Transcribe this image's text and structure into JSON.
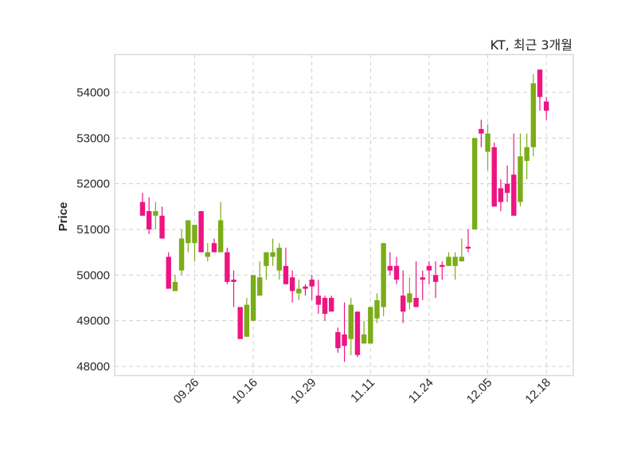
{
  "chart_data": {
    "type": "candlestick",
    "title": "KT, 최근 3개월",
    "xlabel": "",
    "ylabel": "Price",
    "ylim": [
      47800,
      54800
    ],
    "yticks": [
      48000,
      49000,
      50000,
      51000,
      52000,
      53000,
      54000
    ],
    "xtick_labels": [
      {
        "index": 8,
        "label": "09.26"
      },
      {
        "index": 17,
        "label": "10.16"
      },
      {
        "index": 26,
        "label": "10.29"
      },
      {
        "index": 35,
        "label": "11.11"
      },
      {
        "index": 44,
        "label": "11.24"
      },
      {
        "index": 53,
        "label": "12.05"
      },
      {
        "index": 62,
        "label": "12.18"
      }
    ],
    "grid": true,
    "colors": {
      "up": "#7aad17",
      "down": "#ec1581"
    },
    "ohlc": [
      [
        51600,
        51800,
        51300,
        51300
      ],
      [
        51400,
        51700,
        50900,
        51000
      ],
      [
        51300,
        51600,
        51000,
        51400
      ],
      [
        51300,
        51500,
        50800,
        50800
      ],
      [
        50400,
        50500,
        49700,
        49700
      ],
      [
        49650,
        50000,
        49650,
        49850
      ],
      [
        50100,
        51000,
        50000,
        50800
      ],
      [
        50700,
        51200,
        50500,
        51200
      ],
      [
        50700,
        51100,
        50300,
        51100
      ],
      [
        51400,
        51400,
        50500,
        50500
      ],
      [
        50400,
        50700,
        50300,
        50500
      ],
      [
        50700,
        50800,
        50500,
        50500
      ],
      [
        50500,
        51600,
        50500,
        51200
      ],
      [
        50500,
        50600,
        49800,
        49850
      ],
      [
        49900,
        50100,
        49300,
        49850
      ],
      [
        49300,
        49300,
        48600,
        48600
      ],
      [
        48650,
        49500,
        48650,
        49350
      ],
      [
        49000,
        50000,
        49000,
        50000
      ],
      [
        49550,
        50300,
        49550,
        49950
      ],
      [
        50200,
        50500,
        49900,
        50500
      ],
      [
        50400,
        50800,
        50200,
        50500
      ],
      [
        50100,
        50700,
        49900,
        50600
      ],
      [
        50200,
        50600,
        49800,
        49800
      ],
      [
        49950,
        50100,
        49400,
        49650
      ],
      [
        49600,
        49900,
        49450,
        49700
      ],
      [
        49750,
        49800,
        49550,
        49700
      ],
      [
        49900,
        50000,
        49450,
        49750
      ],
      [
        49550,
        49900,
        49150,
        49350
      ],
      [
        49500,
        49550,
        49000,
        49150
      ],
      [
        49500,
        49550,
        49200,
        49200
      ],
      [
        48750,
        48850,
        48300,
        48400
      ],
      [
        48700,
        49400,
        48100,
        48450
      ],
      [
        48600,
        49500,
        48250,
        49350
      ],
      [
        49200,
        49200,
        48200,
        48250
      ],
      [
        48500,
        49000,
        48500,
        48700
      ],
      [
        48500,
        49300,
        48500,
        49300
      ],
      [
        49050,
        49600,
        48950,
        49450
      ],
      [
        49300,
        50700,
        49100,
        50700
      ],
      [
        50200,
        50500,
        50000,
        50100
      ],
      [
        50200,
        50400,
        49800,
        49900
      ],
      [
        49550,
        50100,
        48950,
        49200
      ],
      [
        49400,
        49950,
        49250,
        49600
      ],
      [
        49500,
        50300,
        49300,
        49300
      ],
      [
        49950,
        50100,
        49450,
        49900
      ],
      [
        50200,
        50300,
        49800,
        50100
      ],
      [
        50000,
        50300,
        49500,
        49850
      ],
      [
        50220,
        50300,
        49900,
        50180
      ],
      [
        50200,
        50500,
        50200,
        50400
      ],
      [
        50200,
        50500,
        49900,
        50400
      ],
      [
        50300,
        50800,
        50300,
        50400
      ],
      [
        50620,
        51000,
        50500,
        50580
      ],
      [
        51000,
        53000,
        51000,
        53000
      ],
      [
        53200,
        53400,
        52800,
        53100
      ],
      [
        52700,
        53300,
        52300,
        53100
      ],
      [
        52800,
        52900,
        51500,
        51500
      ],
      [
        51900,
        52100,
        51400,
        51600
      ],
      [
        52000,
        52400,
        51600,
        51800
      ],
      [
        52200,
        53100,
        51300,
        51300
      ],
      [
        51600,
        53100,
        51500,
        52600
      ],
      [
        52500,
        53100,
        52100,
        52800
      ],
      [
        52800,
        54400,
        52600,
        54200
      ],
      [
        54500,
        54500,
        53600,
        53900
      ],
      [
        53800,
        53900,
        53400,
        53600
      ]
    ]
  }
}
